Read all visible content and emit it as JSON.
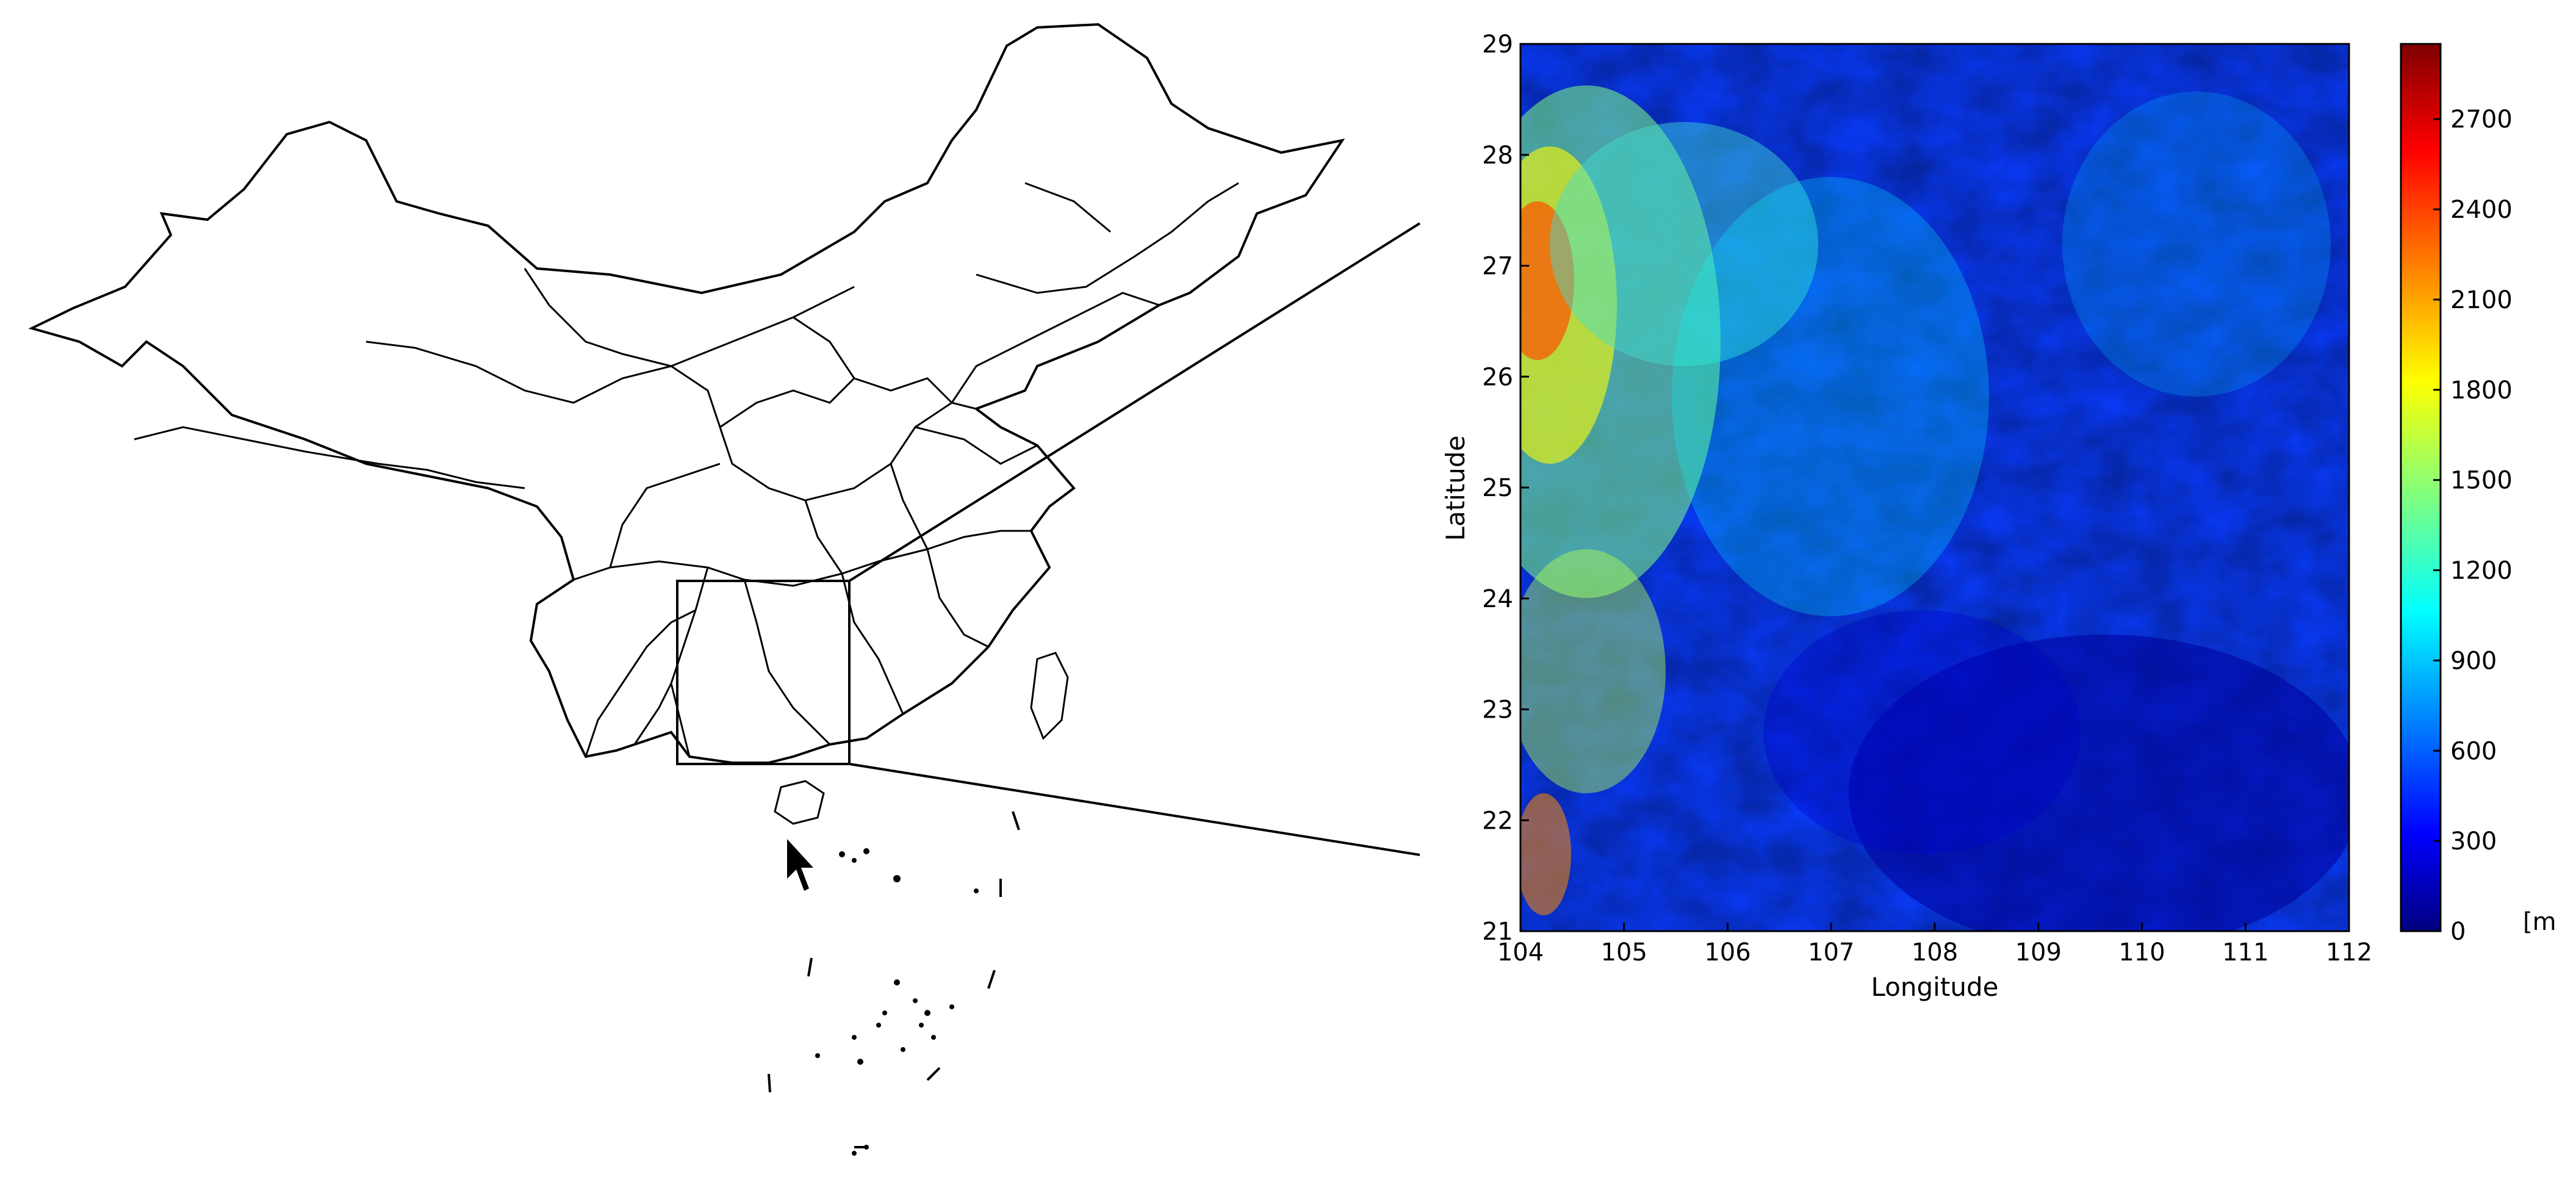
{
  "map": {
    "region": "China",
    "inset_box": {
      "lon_range": [
        104,
        112
      ],
      "lat_range": [
        21,
        29
      ]
    }
  },
  "chart_data": {
    "type": "heatmap",
    "title": "",
    "xlabel": "Longitude",
    "ylabel": "Latitude",
    "xlim": [
      104,
      112
    ],
    "ylim": [
      21,
      29
    ],
    "xticks": [
      104,
      105,
      106,
      107,
      108,
      109,
      110,
      111,
      112
    ],
    "yticks": [
      21,
      22,
      23,
      24,
      25,
      26,
      27,
      28,
      29
    ],
    "colorbar": {
      "ticks": [
        0,
        300,
        600,
        900,
        1200,
        1500,
        1800,
        2100,
        2400,
        2700
      ],
      "range": [
        0,
        2950
      ],
      "unit_label": "[m",
      "colormap": "jet",
      "colors": [
        "#00007f",
        "#0000ff",
        "#007fff",
        "#00ffff",
        "#7fff7f",
        "#ffff00",
        "#ff7f00",
        "#ff0000",
        "#7f0000"
      ]
    }
  },
  "colors": {
    "outline": "#000000",
    "background": "#ffffff"
  }
}
